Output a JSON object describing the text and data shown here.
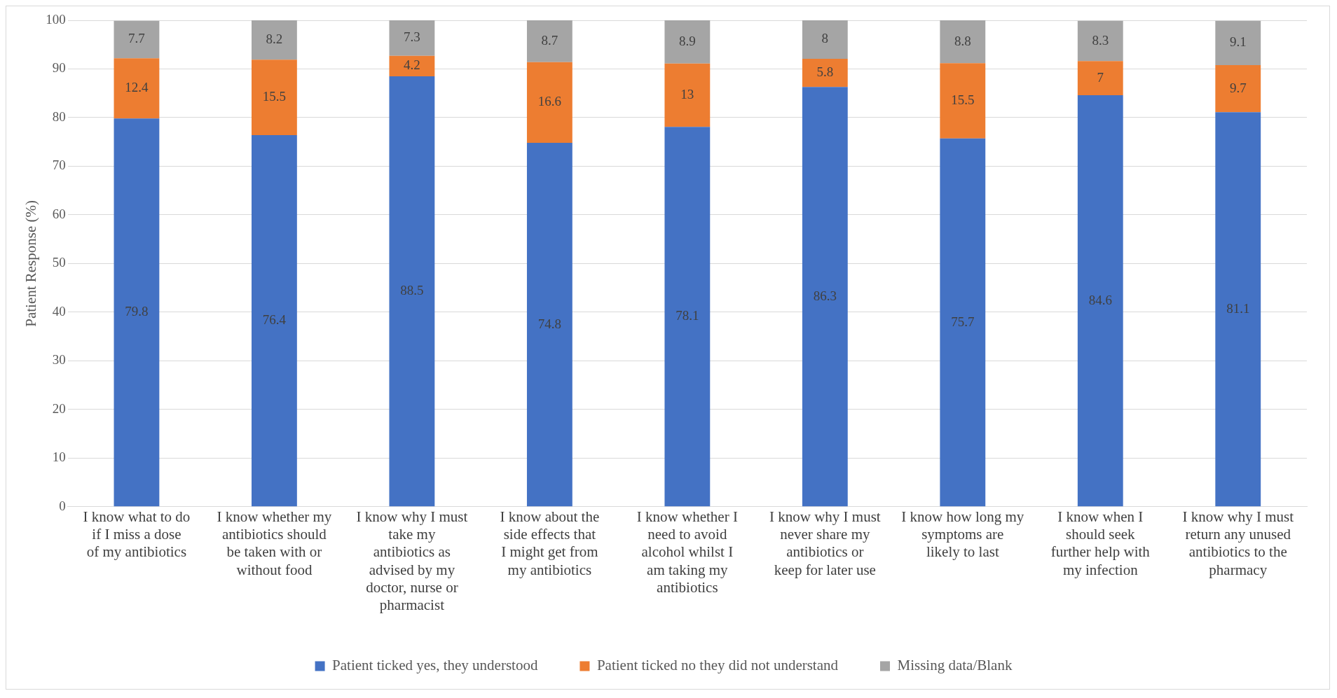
{
  "chart_data": {
    "type": "bar",
    "stacked": true,
    "ylabel": "Patient Response (%)",
    "categories": [
      "I know what to do if I miss a dose of my antibiotics",
      "I know whether my antibiotics should be taken with or without food",
      "I know why I must take my antibiotics as advised by my doctor, nurse or pharmacist",
      "I know about the side effects that I might get from my antibiotics",
      "I know whether I need to avoid alcohol whilst I am taking my antibiotics",
      "I know why I must never share my antibiotics or keep for later use",
      "I know how long my symptoms are likely to last",
      "I know when I should seek further help with my infection",
      "I know why I must return any unused antibiotics to the pharmacy"
    ],
    "series": [
      {
        "name": "Patient ticked yes, they understood",
        "color": "#4472c4",
        "values": [
          79.8,
          76.4,
          88.5,
          74.8,
          78.1,
          86.3,
          75.7,
          84.6,
          81.1
        ]
      },
      {
        "name": "Patient ticked no they did not understand",
        "color": "#ed7d31",
        "values": [
          12.4,
          15.5,
          4.2,
          16.6,
          13,
          5.8,
          15.5,
          7,
          9.7
        ]
      },
      {
        "name": "Missing data/Blank",
        "color": "#a5a5a5",
        "values": [
          7.7,
          8.2,
          7.3,
          8.7,
          8.9,
          8,
          8.8,
          8.3,
          9.1
        ]
      }
    ],
    "ylim": [
      0,
      100
    ],
    "yticks": [
      0,
      10,
      20,
      30,
      40,
      50,
      60,
      70,
      80,
      90,
      100
    ],
    "grid": "y",
    "legend": "bottom",
    "data_labels": true
  }
}
